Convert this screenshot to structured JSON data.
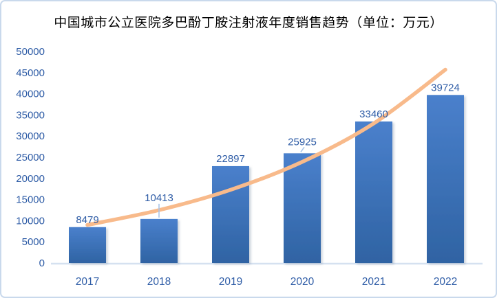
{
  "chart_data": {
    "type": "bar",
    "title": "中国城市公立医院多巴酚丁胺注射液年度销售趋势（单位：万元）",
    "unit": "万元",
    "categories": [
      "2017",
      "2018",
      "2019",
      "2020",
      "2021",
      "2022"
    ],
    "values": [
      8479,
      10413,
      22897,
      25925,
      33460,
      39724
    ],
    "labels": [
      {
        "text": "8479",
        "leader": "none"
      },
      {
        "text": "10413",
        "leader": "vertical"
      },
      {
        "text": "22897",
        "leader": "none"
      },
      {
        "text": "25925",
        "leader": "slant"
      },
      {
        "text": "33460",
        "leader": "none"
      },
      {
        "text": "39724",
        "leader": "none"
      }
    ],
    "trendline": {
      "type": "exponential",
      "values": [
        9000,
        12500,
        17300,
        23900,
        33000,
        45700
      ]
    },
    "xlabel": "",
    "ylabel": "",
    "ylim": [
      0,
      50000
    ],
    "yticks": [
      0,
      5000,
      10000,
      15000,
      20000,
      25000,
      30000,
      35000,
      40000,
      45000,
      50000
    ],
    "grid": "off",
    "legend": "none",
    "colors": {
      "bar_top": "#4A80CC",
      "bar_bottom": "#2F63A3",
      "trendline": "#F8BA8B",
      "label_text": "#2E5CA6",
      "axis_line": "#D5E1F0",
      "leader_line": "#A8C5E8",
      "border": "#C9D9EC",
      "title_text": "#000000",
      "background": "#FFFFFF"
    }
  }
}
